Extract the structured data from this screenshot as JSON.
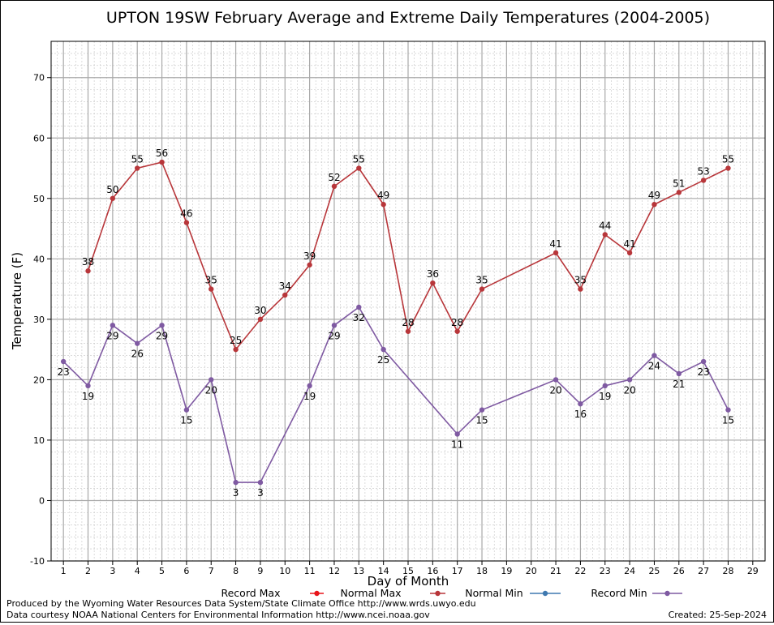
{
  "chart_data": {
    "type": "line",
    "title": "UPTON 19SW February Average and Extreme Daily Temperatures (2004-2005)",
    "xlabel": "Day of Month",
    "ylabel": "Temperature (F)",
    "xlim": [
      0.5,
      29.5
    ],
    "ylim": [
      -10,
      76
    ],
    "x_ticks": [
      1,
      2,
      3,
      4,
      5,
      6,
      7,
      8,
      9,
      10,
      11,
      12,
      13,
      14,
      15,
      16,
      17,
      18,
      19,
      20,
      21,
      22,
      23,
      24,
      25,
      26,
      27,
      28,
      29
    ],
    "y_ticks": [
      -10,
      0,
      10,
      20,
      30,
      40,
      50,
      60,
      70
    ],
    "grid": true,
    "legend_position": "bottom",
    "legend": [
      {
        "name": "Record Max",
        "color": "#e8151a"
      },
      {
        "name": "Normal Max",
        "color": "#b8363a"
      },
      {
        "name": "Normal Min",
        "color": "#3f79b0"
      },
      {
        "name": "Record Min",
        "color": "#7f5aa2"
      }
    ],
    "series": [
      {
        "name": "Normal Max",
        "color": "#b8363a",
        "points": [
          [
            2,
            38
          ],
          [
            3,
            50
          ],
          [
            4,
            55
          ],
          [
            5,
            56
          ],
          [
            6,
            46
          ],
          [
            7,
            35
          ],
          [
            8,
            25
          ],
          [
            9,
            30
          ],
          [
            10,
            34
          ],
          [
            11,
            39
          ],
          [
            12,
            52
          ],
          [
            13,
            55
          ],
          [
            14,
            49
          ],
          [
            15,
            28
          ],
          [
            16,
            36
          ],
          [
            17,
            28
          ],
          [
            18,
            35
          ],
          [
            21,
            41
          ],
          [
            22,
            35
          ],
          [
            23,
            44
          ],
          [
            24,
            41
          ],
          [
            25,
            49
          ],
          [
            26,
            51
          ],
          [
            27,
            53
          ],
          [
            28,
            55
          ]
        ]
      },
      {
        "name": "Record Min",
        "color": "#7f5aa2",
        "points": [
          [
            1,
            23
          ],
          [
            2,
            19
          ],
          [
            3,
            29
          ],
          [
            4,
            26
          ],
          [
            5,
            29
          ],
          [
            6,
            15
          ],
          [
            7,
            20
          ],
          [
            8,
            3
          ],
          [
            9,
            3
          ],
          [
            11,
            19
          ],
          [
            12,
            29
          ],
          [
            13,
            32
          ],
          [
            14,
            25
          ],
          [
            17,
            11
          ],
          [
            18,
            15
          ],
          [
            21,
            20
          ],
          [
            22,
            16
          ],
          [
            23,
            19
          ],
          [
            24,
            20
          ],
          [
            25,
            24
          ],
          [
            26,
            21
          ],
          [
            27,
            23
          ],
          [
            28,
            15
          ]
        ]
      }
    ]
  },
  "footer": {
    "produced_by": "Produced by the Wyoming Water Resources Data System/State Climate Office http://www.wrds.uwyo.edu",
    "courtesy": "Data courtesy NOAA National Centers for Environmental Information http://www.ncei.noaa.gov",
    "created": "Created: 25-Sep-2024"
  }
}
